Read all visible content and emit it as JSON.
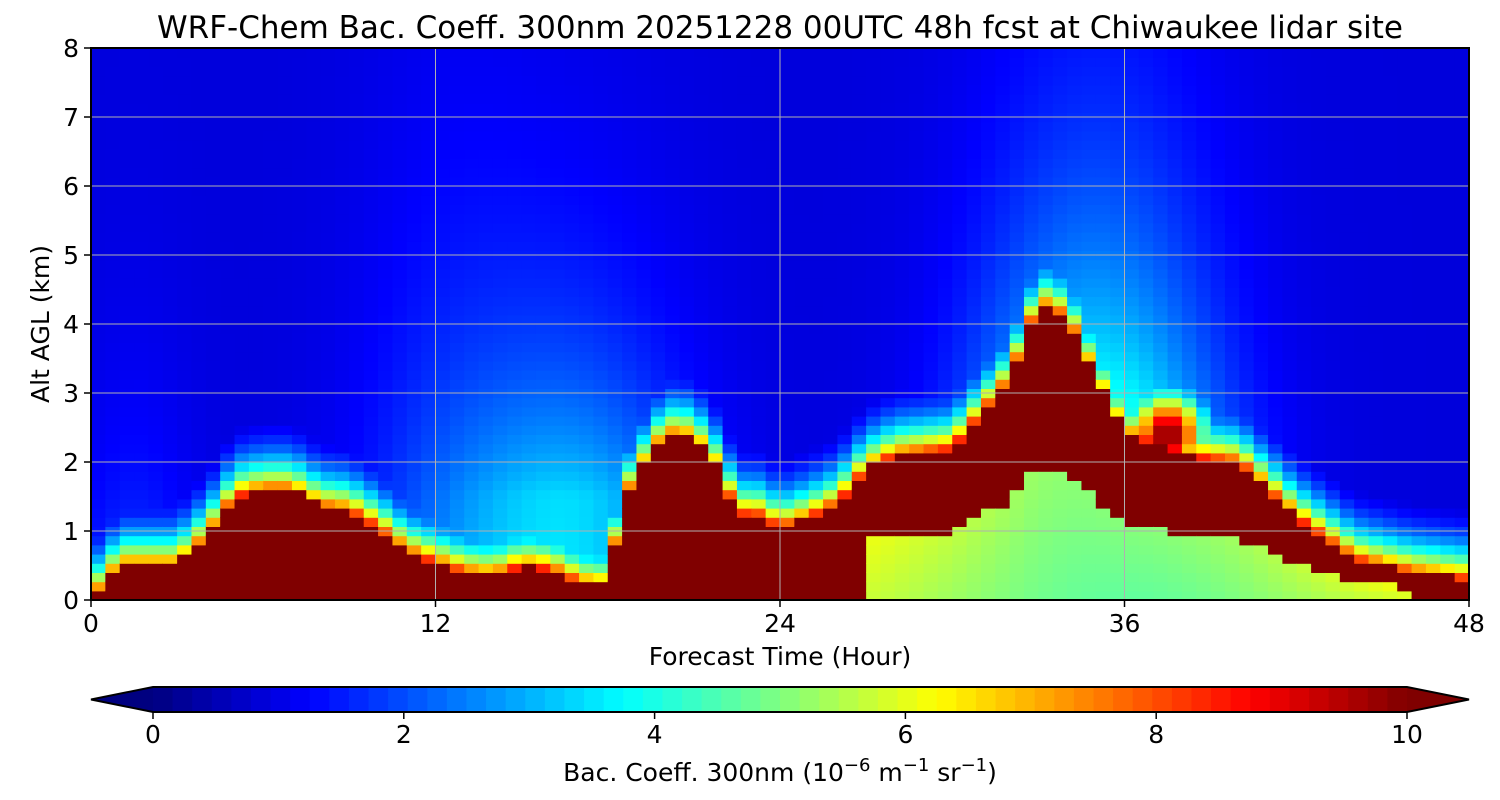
{
  "chart_data": {
    "type": "heatmap",
    "title": "WRF-Chem Bac. Coeff. 300nm  20251228 00UTC 48h fcst at Chiwaukee lidar site",
    "xlabel": "Forecast Time (Hour)",
    "ylabel": "Alt AGL (km)",
    "xlim": [
      0,
      48
    ],
    "ylim": [
      0,
      8
    ],
    "xticks": [
      0,
      12,
      24,
      36,
      48
    ],
    "yticks": [
      0,
      1,
      2,
      3,
      4,
      5,
      6,
      7,
      8
    ],
    "grid": true,
    "colormap": "jet",
    "colorbar": {
      "orientation": "horizontal",
      "location": "bottom",
      "label_text": "Bac. Coeff. 300nm  (10",
      "label_exp1": "−6",
      "label_mid": " m",
      "label_exp2": "−1",
      "label_mid2": " sr",
      "label_exp3": "−1",
      "label_end": ")",
      "min": 0,
      "max": 10,
      "ticks": [
        0,
        2,
        4,
        6,
        8,
        10
      ],
      "extend": "both"
    },
    "x_hours": [
      0,
      0.5,
      1,
      2,
      3,
      4,
      5,
      6,
      7,
      8,
      9,
      10,
      11,
      12,
      13,
      14,
      15,
      16,
      17,
      17.5,
      18,
      18.5,
      19,
      20,
      21,
      22,
      22.5,
      23,
      24,
      25,
      26,
      27,
      28,
      29,
      30,
      31,
      32,
      33,
      34,
      35,
      36,
      37,
      38,
      39,
      40,
      41,
      42,
      44,
      46,
      48
    ],
    "z_km": [
      0,
      0.2,
      0.4,
      0.6,
      0.8,
      1.0,
      1.2,
      1.4,
      1.6,
      1.8,
      2.0,
      2.2,
      2.4,
      2.6,
      2.8,
      3.0,
      3.3,
      3.6,
      4.0,
      4.4,
      4.8,
      5.2,
      5.6,
      6.0,
      6.5,
      7.0,
      7.5,
      8.0
    ],
    "plume_top_km": [
      0.0,
      0.25,
      0.5,
      0.5,
      0.5,
      0.9,
      1.5,
      1.6,
      1.6,
      1.35,
      1.3,
      1.05,
      0.7,
      0.55,
      0.4,
      0.35,
      0.5,
      0.45,
      0.25,
      0.2,
      0.2,
      1.4,
      1.8,
      2.4,
      2.35,
      1.8,
      1.2,
      1.3,
      1.05,
      1.2,
      1.4,
      1.9,
      2.1,
      2.15,
      2.2,
      2.7,
      3.2,
      4.3,
      4.1,
      3.2,
      2.4,
      2.3,
      2.1,
      2.05,
      2.0,
      1.6,
      1.2,
      0.6,
      0.4,
      0.3
    ],
    "upper_values_note": "",
    "colorbar_ticks_labels": [
      "0",
      "2",
      "4",
      "6",
      "8",
      "10"
    ]
  }
}
